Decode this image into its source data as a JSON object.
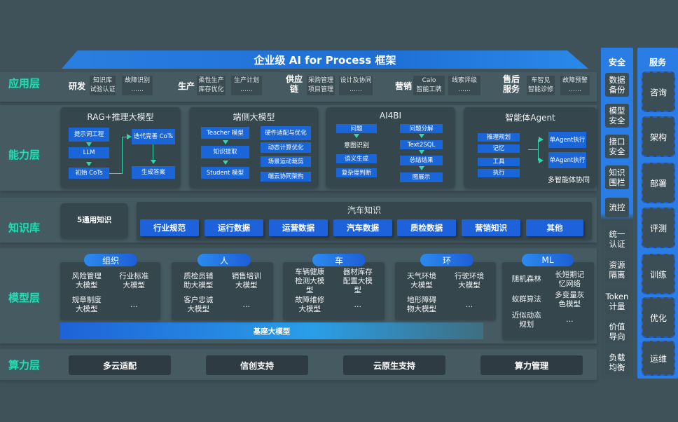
{
  "title": "企业级 AI for Process 框架",
  "layers": {
    "app": "应用层",
    "capability": "能力层",
    "knowledge": "知识库",
    "model": "模型层",
    "compute": "算力层"
  },
  "app_groups": [
    {
      "name": "研发",
      "items": [
        "知识库",
        "试验认证",
        "故障识别",
        "……"
      ]
    },
    {
      "name": "生产",
      "items": [
        "柔性生产",
        "库存优化",
        "生产计划",
        "……"
      ]
    },
    {
      "name": "供应链",
      "items": [
        "采购管理",
        "项目管理",
        "设计及协同",
        "……"
      ]
    },
    {
      "name": "营销",
      "items": [
        "Calo",
        "智能工牌",
        "线索评级",
        "……"
      ]
    },
    {
      "name": "售后服务",
      "items": [
        "车智见",
        "智能诊修",
        "故障预警",
        "……"
      ]
    }
  ],
  "capability": {
    "rag": {
      "title": "RAG+推理大模型",
      "items": [
        "提示词工程",
        "LLM",
        "初始 CoTs",
        "迭代完善 CoTs",
        "生成答案"
      ]
    },
    "edge": {
      "title": "端侧大模型",
      "items": [
        "Teacher 模型",
        "知识提取",
        "Student 模型",
        "硬件适配与优化",
        "动态计算优化",
        "场景运动裁剪",
        "端云协同架构"
      ]
    },
    "ai4bi": {
      "title": "AI4BI",
      "items": [
        "问题",
        "意图识别",
        "语义生成",
        "复杂度判断",
        "问题分解",
        "Text2SQL",
        "总结结果",
        "图展示"
      ]
    },
    "agent": {
      "title": "智能体Agent",
      "items": [
        "推理规划",
        "记忆",
        "工具",
        "执行",
        "单Agent执行",
        "单Agent执行"
      ],
      "caption": "多智能体协同"
    }
  },
  "knowledge": {
    "general": "5通用知识",
    "auto_title": "汽车知识",
    "chips": [
      "行业规范",
      "运行数据",
      "运营数据",
      "汽车数据",
      "质检数据",
      "营销知识",
      "其他"
    ]
  },
  "model": {
    "groups": [
      {
        "name": "组织",
        "items": [
          "风险管理大模型",
          "行业标准大模型",
          "规章制度大模型",
          "…"
        ]
      },
      {
        "name": "人",
        "items": [
          "质检员辅助大模型",
          "销售培训大模型",
          "客户忠诚大模型",
          "…"
        ]
      },
      {
        "name": "车",
        "items": [
          "车辆健康检测大模型",
          "器材库存配置大模型",
          "故障维修大模型",
          "…"
        ]
      },
      {
        "name": "环",
        "items": [
          "天气环境大模型",
          "行驶环境大模型",
          "地形障碍物大模型",
          "…"
        ]
      },
      {
        "name": "ML",
        "items": [
          "随机森林",
          "长短期记忆网络",
          "蚁群算法",
          "多变量灰色模型",
          "近似动态规划",
          "…"
        ]
      }
    ],
    "base": "基座大模型"
  },
  "compute": [
    "多云适配",
    "信创支持",
    "云原生支持",
    "算力管理"
  ],
  "security": {
    "title": "安全",
    "items": [
      "数据备份",
      "模型安全",
      "接口安全",
      "知识围栏",
      "流控",
      "统一认证",
      "资源隔离",
      "Token计量",
      "价值导向",
      "负载均衡"
    ]
  },
  "services": {
    "title": "服务",
    "items": [
      "咨询",
      "架构",
      "部署",
      "评测",
      "训练",
      "优化",
      "运维"
    ]
  },
  "colors": {
    "accent_blue": "#1a66d8",
    "layer_label": "#2fd6b0",
    "background": "#3f5159"
  }
}
